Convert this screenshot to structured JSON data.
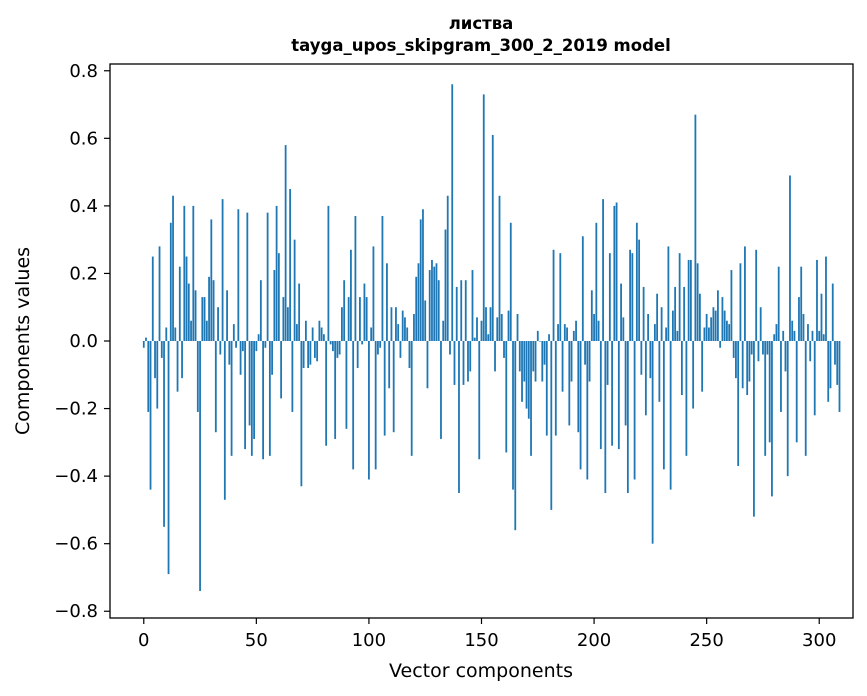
{
  "chart_data": {
    "type": "bar",
    "title_line1": "листва",
    "title_line2": "tayga_upos_skipgram_300_2_2019 model",
    "xlabel": "Vector components",
    "ylabel": "Components values",
    "xlim": [
      -15,
      315
    ],
    "ylim": [
      -0.82,
      0.82
    ],
    "xticks": [
      0,
      50,
      100,
      150,
      200,
      250,
      300
    ],
    "xtick_labels": [
      "0",
      "50",
      "100",
      "150",
      "200",
      "250",
      "300"
    ],
    "yticks": [
      -0.8,
      -0.6,
      -0.4,
      -0.2,
      0.0,
      0.2,
      0.4,
      0.6,
      0.8
    ],
    "ytick_labels": [
      "−0.8",
      "−0.6",
      "−0.4",
      "−0.2",
      "0.0",
      "0.2",
      "0.4",
      "0.6",
      "0.8"
    ],
    "bar_color": "#1f77b4",
    "values": [
      -0.02,
      0.01,
      -0.21,
      -0.44,
      0.25,
      -0.11,
      -0.2,
      0.28,
      -0.05,
      -0.55,
      0.04,
      -0.69,
      0.35,
      0.43,
      0.04,
      -0.15,
      0.22,
      -0.11,
      0.4,
      0.25,
      0.17,
      0.06,
      0.4,
      0.15,
      -0.21,
      -0.74,
      0.13,
      0.13,
      0.06,
      0.19,
      0.36,
      0.18,
      -0.27,
      0.1,
      -0.04,
      0.42,
      -0.47,
      0.15,
      -0.07,
      -0.34,
      0.05,
      -0.02,
      0.39,
      -0.1,
      -0.03,
      -0.32,
      0.38,
      -0.25,
      -0.34,
      -0.29,
      -0.03,
      0.02,
      0.18,
      -0.35,
      -0.02,
      0.38,
      -0.34,
      -0.1,
      0.21,
      0.4,
      0.26,
      -0.17,
      0.13,
      0.58,
      0.1,
      0.45,
      -0.21,
      0.3,
      0.05,
      0.17,
      -0.43,
      -0.08,
      0.06,
      -0.08,
      -0.07,
      0.04,
      -0.05,
      -0.06,
      0.06,
      0.04,
      0.02,
      -0.31,
      0.4,
      -0.01,
      -0.03,
      -0.29,
      -0.05,
      -0.04,
      0.1,
      0.18,
      -0.26,
      0.13,
      0.27,
      -0.38,
      0.37,
      -0.08,
      0.13,
      -0.01,
      0.17,
      0.13,
      -0.41,
      0.04,
      0.28,
      -0.38,
      -0.04,
      -0.02,
      0.37,
      -0.28,
      0.23,
      -0.14,
      0.1,
      -0.27,
      0.1,
      0.05,
      -0.05,
      0.09,
      0.07,
      0.04,
      -0.08,
      -0.34,
      0.08,
      0.19,
      0.23,
      0.36,
      0.39,
      0.12,
      -0.14,
      0.21,
      0.24,
      0.22,
      0.23,
      0.18,
      -0.29,
      0.06,
      0.33,
      0.43,
      -0.04,
      0.76,
      -0.13,
      0.16,
      -0.45,
      0.18,
      -0.13,
      0.18,
      -0.12,
      -0.09,
      0.21,
      0.01,
      0.07,
      -0.35,
      0.06,
      0.73,
      0.1,
      0.02,
      0.1,
      0.61,
      -0.09,
      0.07,
      0.43,
      0.08,
      -0.05,
      -0.33,
      0.09,
      0.35,
      -0.44,
      -0.56,
      0.08,
      -0.09,
      -0.18,
      -0.12,
      -0.2,
      -0.23,
      -0.34,
      -0.09,
      -0.12,
      0.03,
      0.0,
      -0.12,
      -0.07,
      -0.28,
      0.02,
      -0.5,
      0.27,
      -0.28,
      0.05,
      0.26,
      -0.15,
      0.05,
      0.04,
      -0.25,
      -0.12,
      0.03,
      0.06,
      -0.27,
      -0.38,
      0.31,
      -0.07,
      -0.41,
      -0.12,
      0.15,
      0.08,
      0.35,
      0.06,
      -0.32,
      0.42,
      -0.45,
      -0.13,
      0.26,
      -0.31,
      0.4,
      0.41,
      -0.32,
      0.17,
      0.07,
      -0.25,
      -0.45,
      0.27,
      0.26,
      -0.41,
      0.35,
      0.3,
      -0.1,
      0.16,
      -0.22,
      0.08,
      -0.11,
      -0.6,
      0.05,
      0.14,
      -0.18,
      0.1,
      -0.38,
      0.04,
      0.28,
      -0.44,
      0.09,
      0.16,
      0.03,
      0.26,
      -0.16,
      0.16,
      -0.34,
      0.24,
      0.24,
      -0.2,
      0.67,
      0.23,
      0.14,
      -0.15,
      0.04,
      0.08,
      0.04,
      0.07,
      0.1,
      0.09,
      0.15,
      -0.02,
      0.13,
      0.09,
      0.06,
      0.05,
      0.21,
      -0.05,
      -0.11,
      -0.37,
      0.23,
      -0.14,
      0.28,
      -0.16,
      -0.12,
      -0.04,
      -0.52,
      0.27,
      -0.06,
      0.1,
      -0.04,
      -0.34,
      -0.04,
      -0.3,
      -0.46,
      0.02,
      0.05,
      0.22,
      -0.21,
      0.03,
      -0.09,
      -0.4,
      0.49,
      0.06,
      0.03,
      -0.3,
      0.13,
      0.22,
      0.08,
      -0.34,
      0.05,
      -0.06,
      0.03,
      -0.22,
      0.24,
      0.03,
      0.14,
      0.02,
      0.25,
      -0.18,
      -0.14,
      0.17,
      -0.07,
      -0.13,
      -0.21
    ]
  }
}
